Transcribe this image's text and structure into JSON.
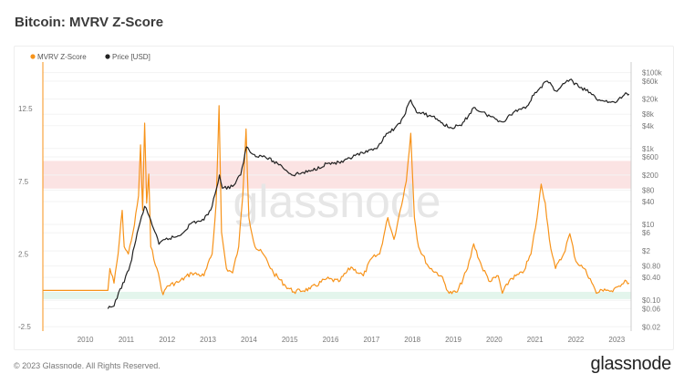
{
  "title": "Bitcoin: MVRV Z-Score",
  "footer": "© 2023 Glassnode. All Rights Reserved.",
  "logo": "glassnode",
  "watermark": "glassnode",
  "chart_data": {
    "type": "line",
    "title": "Bitcoin: MVRV Z-Score",
    "legend": [
      {
        "name": "MVRV Z-Score",
        "color": "#f7931a"
      },
      {
        "name": "Price [USD]",
        "color": "#222222"
      }
    ],
    "legend_position": "top-left",
    "x_ticks": [
      "2010",
      "2011",
      "2012",
      "2013",
      "2014",
      "2015",
      "2016",
      "2017",
      "2018",
      "2019",
      "2020",
      "2021",
      "2022",
      "2023"
    ],
    "xlim": [
      2008.96,
      2023.35
    ],
    "left_axis": {
      "ticks": [
        "12.5",
        "7.5",
        "2.5",
        "-2.5"
      ],
      "values": [
        12.5,
        7.5,
        2.5,
        -2.5
      ],
      "ylim": [
        -2.8,
        15.7
      ]
    },
    "right_axis": {
      "scale": "log",
      "ticks": [
        "$100k",
        "$60k",
        "$20k",
        "$8k",
        "$4k",
        "$1k",
        "$600",
        "$200",
        "$80",
        "$40",
        "$10",
        "$6",
        "$2",
        "$0.80",
        "$0.40",
        "$0.10",
        "$0.06",
        "$0.02"
      ],
      "values": [
        100000,
        60000,
        20000,
        8000,
        4000,
        1000,
        600,
        200,
        80,
        40,
        10,
        6,
        2,
        0.8,
        0.4,
        0.1,
        0.06,
        0.02
      ],
      "ylim": [
        0.0154,
        190000
      ]
    },
    "bands": [
      {
        "name": "overvalued-zone",
        "from": 7.0,
        "to": 8.9,
        "color": "#fbe3e3"
      },
      {
        "name": "undervalued-zone",
        "from": -0.6,
        "to": -0.1,
        "color": "#e3f5ec"
      }
    ],
    "series": [
      {
        "name": "MVRV Z-Score",
        "axis": "left",
        "color": "#f7931a",
        "points": [
          [
            2008.96,
            0
          ],
          [
            2010.55,
            0
          ],
          [
            2010.6,
            1.5
          ],
          [
            2010.7,
            0.5
          ],
          [
            2010.8,
            2.5
          ],
          [
            2010.9,
            5.5
          ],
          [
            2010.95,
            3
          ],
          [
            2011.05,
            2.5
          ],
          [
            2011.2,
            4.5
          ],
          [
            2011.3,
            6.5
          ],
          [
            2011.35,
            10.0
          ],
          [
            2011.4,
            5.5
          ],
          [
            2011.45,
            11.5
          ],
          [
            2011.5,
            6
          ],
          [
            2011.55,
            8
          ],
          [
            2011.6,
            3
          ],
          [
            2011.75,
            1.5
          ],
          [
            2011.9,
            -0.3
          ],
          [
            2012.0,
            0.3
          ],
          [
            2012.3,
            0.6
          ],
          [
            2012.6,
            1.2
          ],
          [
            2012.9,
            1.0
          ],
          [
            2013.1,
            2.5
          ],
          [
            2013.2,
            6.0
          ],
          [
            2013.27,
            12.7
          ],
          [
            2013.33,
            4.0
          ],
          [
            2013.45,
            1.5
          ],
          [
            2013.6,
            1.2
          ],
          [
            2013.75,
            3.0
          ],
          [
            2013.85,
            6.5
          ],
          [
            2013.93,
            11.1
          ],
          [
            2014.0,
            5.0
          ],
          [
            2014.15,
            3.0
          ],
          [
            2014.35,
            2.5
          ],
          [
            2014.6,
            1.2
          ],
          [
            2014.9,
            0.3
          ],
          [
            2015.1,
            -0.1
          ],
          [
            2015.5,
            0.1
          ],
          [
            2015.9,
            0.8
          ],
          [
            2016.2,
            0.6
          ],
          [
            2016.5,
            1.6
          ],
          [
            2016.8,
            1.0
          ],
          [
            2017.0,
            2.2
          ],
          [
            2017.2,
            2.5
          ],
          [
            2017.4,
            5.0
          ],
          [
            2017.55,
            3.5
          ],
          [
            2017.7,
            5.5
          ],
          [
            2017.85,
            7.5
          ],
          [
            2017.96,
            10.8
          ],
          [
            2018.05,
            5.0
          ],
          [
            2018.15,
            3.0
          ],
          [
            2018.4,
            1.6
          ],
          [
            2018.7,
            1.0
          ],
          [
            2018.9,
            -0.2
          ],
          [
            2019.1,
            -0.1
          ],
          [
            2019.35,
            1.5
          ],
          [
            2019.5,
            3.2
          ],
          [
            2019.7,
            1.6
          ],
          [
            2019.9,
            0.6
          ],
          [
            2020.1,
            1.0
          ],
          [
            2020.2,
            -0.2
          ],
          [
            2020.4,
            0.8
          ],
          [
            2020.7,
            1.2
          ],
          [
            2020.9,
            2.5
          ],
          [
            2021.05,
            5.0
          ],
          [
            2021.15,
            7.3
          ],
          [
            2021.25,
            6.0
          ],
          [
            2021.35,
            3.5
          ],
          [
            2021.5,
            1.5
          ],
          [
            2021.7,
            2.5
          ],
          [
            2021.85,
            3.9
          ],
          [
            2022.0,
            2.0
          ],
          [
            2022.2,
            1.5
          ],
          [
            2022.35,
            0.8
          ],
          [
            2022.5,
            -0.2
          ],
          [
            2022.7,
            0.1
          ],
          [
            2022.9,
            -0.1
          ],
          [
            2023.05,
            0.3
          ],
          [
            2023.2,
            0.7
          ],
          [
            2023.3,
            0.5
          ]
        ]
      },
      {
        "name": "Price [USD]",
        "axis": "right",
        "color": "#222222",
        "points": [
          [
            2010.55,
            0.06
          ],
          [
            2010.7,
            0.07
          ],
          [
            2010.85,
            0.2
          ],
          [
            2010.95,
            0.3
          ],
          [
            2011.1,
            0.9
          ],
          [
            2011.3,
            8
          ],
          [
            2011.45,
            30
          ],
          [
            2011.6,
            13
          ],
          [
            2011.8,
            3
          ],
          [
            2011.95,
            4
          ],
          [
            2012.3,
            5
          ],
          [
            2012.6,
            11
          ],
          [
            2012.9,
            13
          ],
          [
            2013.1,
            30
          ],
          [
            2013.28,
            200
          ],
          [
            2013.35,
            90
          ],
          [
            2013.6,
            100
          ],
          [
            2013.8,
            200
          ],
          [
            2013.94,
            1100
          ],
          [
            2014.1,
            700
          ],
          [
            2014.4,
            600
          ],
          [
            2014.8,
            350
          ],
          [
            2015.05,
            200
          ],
          [
            2015.5,
            250
          ],
          [
            2015.9,
            400
          ],
          [
            2016.3,
            430
          ],
          [
            2016.6,
            650
          ],
          [
            2016.9,
            800
          ],
          [
            2017.1,
            1000
          ],
          [
            2017.4,
            2500
          ],
          [
            2017.7,
            4500
          ],
          [
            2017.96,
            19000
          ],
          [
            2018.1,
            9000
          ],
          [
            2018.5,
            7000
          ],
          [
            2018.9,
            3500
          ],
          [
            2019.2,
            4000
          ],
          [
            2019.5,
            12000
          ],
          [
            2019.8,
            8000
          ],
          [
            2020.2,
            5000
          ],
          [
            2020.5,
            9500
          ],
          [
            2020.8,
            13000
          ],
          [
            2021.0,
            30000
          ],
          [
            2021.3,
            60000
          ],
          [
            2021.5,
            33000
          ],
          [
            2021.65,
            45000
          ],
          [
            2021.85,
            65000
          ],
          [
            2022.1,
            40000
          ],
          [
            2022.35,
            30000
          ],
          [
            2022.5,
            20000
          ],
          [
            2022.85,
            16500
          ],
          [
            2023.0,
            17000
          ],
          [
            2023.15,
            24000
          ],
          [
            2023.25,
            28000
          ],
          [
            2023.3,
            27000
          ]
        ]
      }
    ]
  }
}
